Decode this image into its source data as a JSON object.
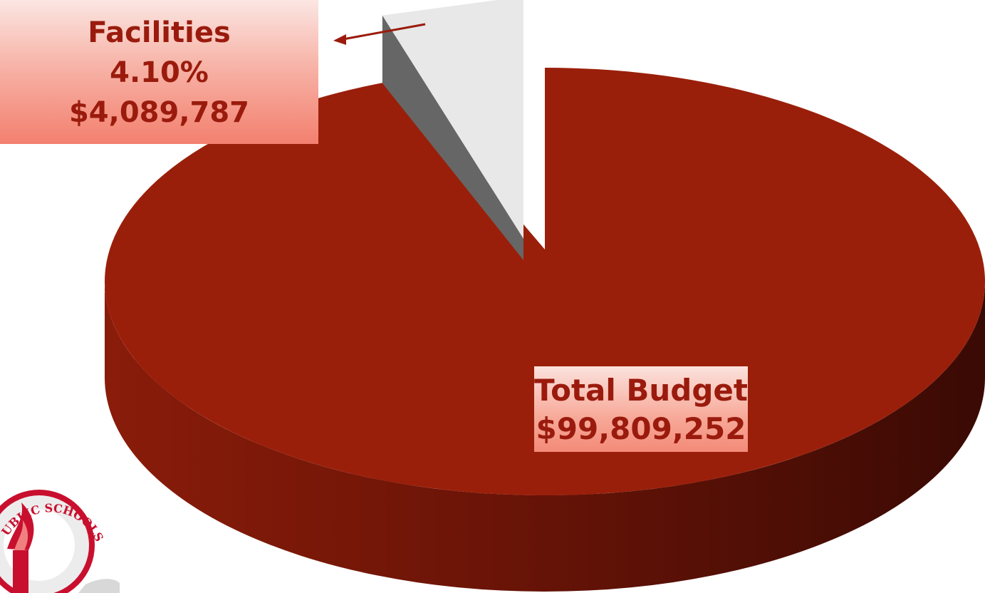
{
  "chart_data": {
    "type": "pie",
    "style": "3d-exploded",
    "slices": [
      {
        "label": "Facilities",
        "percent": 4.1,
        "value": 4089787,
        "color": "#e8e8e8",
        "exploded": true
      },
      {
        "label": "Total Budget",
        "percent": 95.9,
        "value": 99809252,
        "color": "#9a1f0a",
        "exploded": false
      }
    ],
    "annotations": {
      "facilities": {
        "name": "Facilities",
        "percent": "4.10%",
        "amount": "$4,089,787"
      },
      "total": {
        "name": "Total Budget",
        "amount": "$99,809,252"
      }
    }
  },
  "logo": {
    "text": "PUBLIC SCHOOLS",
    "accent_color": "#c8102e"
  },
  "colors": {
    "pie_main": "#9a1f0a",
    "pie_side_dark": "#3f0c05",
    "slice_top": "#e8e8e8",
    "slice_side": "#666666",
    "label_text": "#9a1b0d"
  }
}
